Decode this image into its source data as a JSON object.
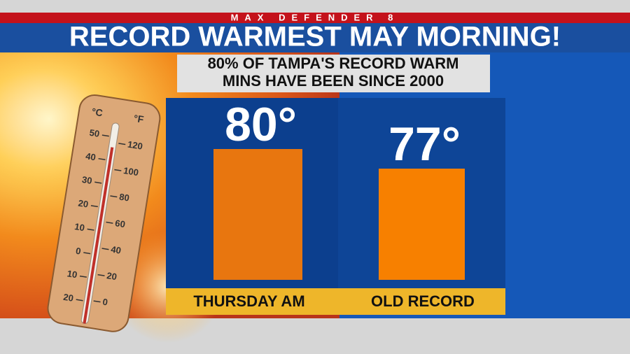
{
  "header": {
    "brand": "MAX DEFENDER 8",
    "title": "RECORD WARMEST MAY MORNING!"
  },
  "chart_data": {
    "type": "bar",
    "title": [
      "80% OF TAMPA'S RECORD WARM",
      "MINS HAVE BEEN SINCE 2000"
    ],
    "categories": [
      "THURSDAY AM",
      "OLD RECORD"
    ],
    "values": [
      80,
      77
    ],
    "value_labels": [
      "80°",
      "77°"
    ],
    "colors": [
      "#e8760f",
      "#f78000"
    ],
    "ylim": [
      60,
      100
    ]
  },
  "thermometer": {
    "c_unit": "°C",
    "f_unit": "°F",
    "celsius": [
      "50",
      "40",
      "30",
      "20",
      "10",
      "0",
      "10",
      "20"
    ],
    "fahrenheit": [
      "120",
      "100",
      "80",
      "60",
      "40",
      "20",
      "0"
    ]
  }
}
